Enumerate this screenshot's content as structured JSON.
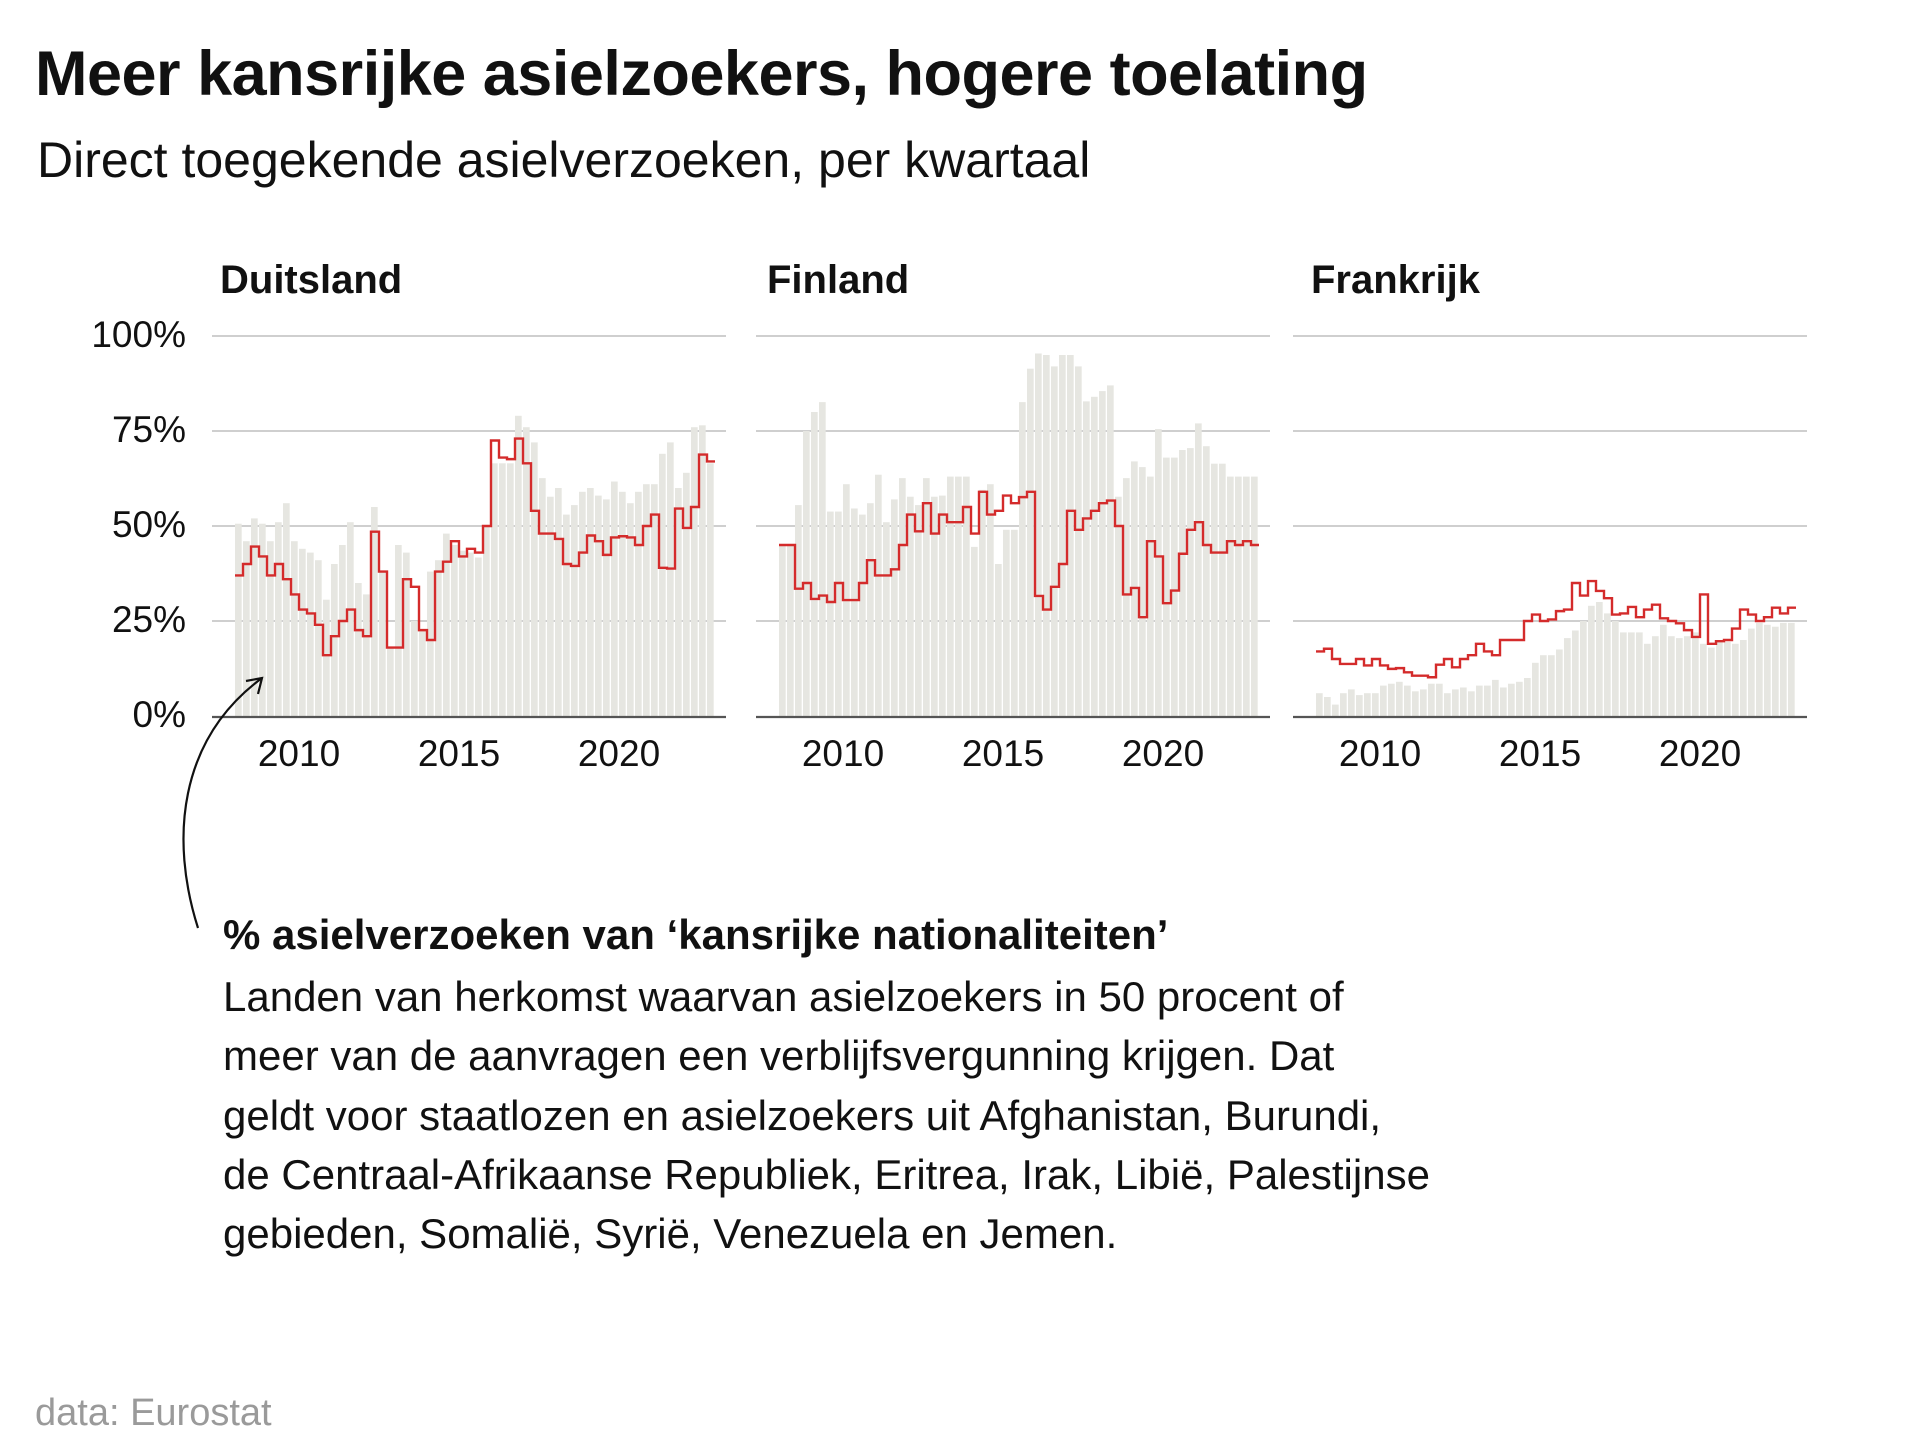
{
  "title": "Meer kansrijke asielzoekers, hogere toelating",
  "subtitle": "Direct toegekende asielverzoeken, per kwartaal",
  "source": "data: Eurostat",
  "annotation": {
    "heading": "% asielverzoeken van ‘kansrijke nationaliteiten’",
    "lines": [
      "Landen van herkomst waarvan asielzoekers in 50 procent of",
      "meer van de aanvragen een verblijfsvergunning krijgen. Dat",
      "geldt voor staatlozen en asielzoekers uit Afghanistan, Burundi,",
      "de Centraal-Afrikaanse Republiek, Eritrea, Irak, Libië, Palestijnse",
      "gebieden, Somalië, Syrië, Venezuela en Jemen."
    ]
  },
  "colors": {
    "bar": "#e6e6e1",
    "line": "#d42b2b",
    "grid": "#cfcfcf",
    "axis": "#555555"
  },
  "chart_data": {
    "type": "bar",
    "title": "Direct toegekende asielverzoeken, per kwartaal",
    "xlabel": "",
    "ylabel": "",
    "ylim": [
      0,
      100
    ],
    "y_ticks": [
      "100%",
      "75%",
      "50%",
      "25%",
      "0%"
    ],
    "y_tick_values": [
      100,
      75,
      50,
      25,
      0
    ],
    "x_ticks": [
      "2010",
      "2015",
      "2020"
    ],
    "x_tick_values": [
      2010,
      2015,
      2020
    ],
    "x_start": "2008Q1",
    "x_end": "2022Q4",
    "grid": true,
    "series_names": {
      "bars": "Direct toegekende asielverzoeken (%)",
      "line": "% asielverzoeken van ‘kansrijke nationaliteiten’"
    },
    "panels": [
      {
        "name": "Duitsland",
        "bars": [
          50.6,
          46,
          52,
          50.6,
          46,
          51,
          56,
          46,
          44,
          43,
          41,
          30.6,
          40,
          45,
          51,
          35,
          32,
          55,
          38,
          18,
          45,
          43,
          25,
          22.6,
          38,
          41,
          48,
          45,
          43.5,
          43,
          41.7,
          50,
          66.5,
          66.5,
          66.5,
          79,
          76,
          72,
          62.6,
          57.7,
          60,
          53,
          55.5,
          59,
          60,
          58,
          57,
          61.7,
          59,
          56,
          59,
          61,
          61,
          69,
          72,
          60,
          64,
          76,
          76.5,
          66.5
        ],
        "line": [
          37,
          40,
          44.6,
          42,
          37,
          40,
          36,
          32,
          28,
          27,
          24,
          16,
          21,
          25,
          28,
          22.6,
          21,
          48.5,
          38,
          18,
          18,
          36,
          34,
          22.6,
          20,
          38,
          40.6,
          46,
          42,
          44,
          43,
          50,
          72.5,
          68,
          67.6,
          73,
          66.5,
          54,
          48,
          48,
          46.6,
          40,
          39.5,
          43,
          47.5,
          46,
          42.4,
          47,
          47.3,
          47,
          45,
          50,
          53,
          39,
          38.8,
          54.6,
          49.5,
          55,
          68.8,
          67
        ]
      },
      {
        "name": "Finland",
        "bars": [
          45,
          45,
          55.5,
          75,
          80,
          82.6,
          53.8,
          53.8,
          61,
          54.6,
          53,
          56,
          63.5,
          51,
          57,
          62.6,
          57.7,
          55.5,
          62.6,
          57.7,
          58,
          63,
          63,
          63,
          44.5,
          59.5,
          61,
          40,
          49,
          49,
          82.6,
          91.4,
          95.4,
          95,
          92,
          95,
          95,
          92,
          82.8,
          84,
          85.5,
          87,
          57.7,
          62.6,
          67,
          65.5,
          63,
          75.5,
          68,
          68,
          70,
          70.5,
          77,
          71,
          66.4,
          66.4,
          63,
          63,
          63,
          63
        ],
        "line": [
          45,
          45,
          33.5,
          35,
          30.8,
          31.7,
          30,
          35,
          30.5,
          30.5,
          35,
          41,
          37,
          37,
          38.6,
          45,
          53,
          48.6,
          56,
          48,
          53,
          51,
          51,
          55,
          48,
          59,
          53,
          54,
          58,
          56,
          57.6,
          59,
          31.6,
          28,
          34,
          40,
          54,
          49,
          52,
          54,
          56,
          56.7,
          50,
          32,
          33.7,
          26,
          46,
          42,
          29.7,
          33,
          42.7,
          49,
          51,
          45,
          43,
          43,
          46,
          45,
          46,
          45
        ]
      },
      {
        "name": "Frankrijk",
        "bars": [
          6,
          5,
          3,
          6,
          7,
          5.5,
          6,
          6,
          8,
          8.5,
          9,
          8,
          6.5,
          7,
          8.5,
          8.5,
          6,
          7,
          7.5,
          6.5,
          8,
          8,
          9.5,
          7.5,
          8.5,
          9,
          10,
          14,
          16,
          16,
          17.5,
          20.5,
          22.5,
          25,
          29,
          30,
          27,
          25,
          22,
          22,
          22,
          19,
          21,
          24,
          21,
          20.5,
          21,
          22,
          19,
          18,
          20,
          19.5,
          19,
          20,
          23,
          24.5,
          24,
          23.5,
          24.5,
          24.5
        ],
        "line": [
          17,
          17.7,
          15,
          13.7,
          13.7,
          15,
          13.3,
          15,
          13.3,
          12.4,
          12.6,
          11.5,
          10.6,
          10.6,
          10.2,
          13.5,
          15,
          12.8,
          15,
          16,
          19,
          17,
          16,
          20,
          20,
          20,
          25,
          26.7,
          25,
          25.4,
          27.6,
          28,
          35,
          31.7,
          35.5,
          32.9,
          31,
          26.7,
          27,
          28.7,
          26,
          28,
          29.3,
          25.7,
          25,
          24.4,
          22.6,
          20.8,
          32,
          19,
          19.7,
          20,
          23,
          28,
          26.7,
          25,
          26,
          28.5,
          27,
          28.5
        ]
      }
    ]
  }
}
